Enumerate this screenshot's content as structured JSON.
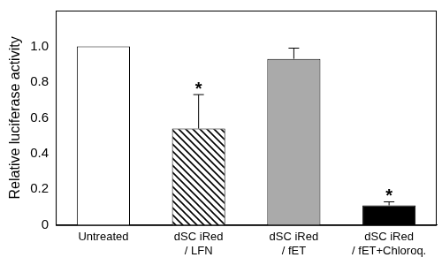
{
  "chart_data": {
    "type": "bar",
    "y_label": "Relative luciferase activity",
    "categories": [
      "Untreated",
      [
        "dSC iRed",
        "/ LFN"
      ],
      [
        "dSC iRed",
        "/ fET"
      ],
      [
        "dSC iRed",
        "/ fET+Chloroq."
      ]
    ],
    "values": [
      1.0,
      0.54,
      0.93,
      0.11
    ],
    "errors": [
      null,
      0.19,
      0.06,
      0.02
    ],
    "annotations": [
      null,
      "*",
      null,
      "*"
    ],
    "colors": [
      "#ffffff",
      "#000000",
      "#aaaaaa",
      "#000000"
    ],
    "ylim": [
      0,
      1.2
    ],
    "yticks": [
      0,
      0.2,
      0.4,
      0.6,
      0.8,
      {
        "value": 1,
        "label": "1.0"
      }
    ],
    "grid": false
  }
}
